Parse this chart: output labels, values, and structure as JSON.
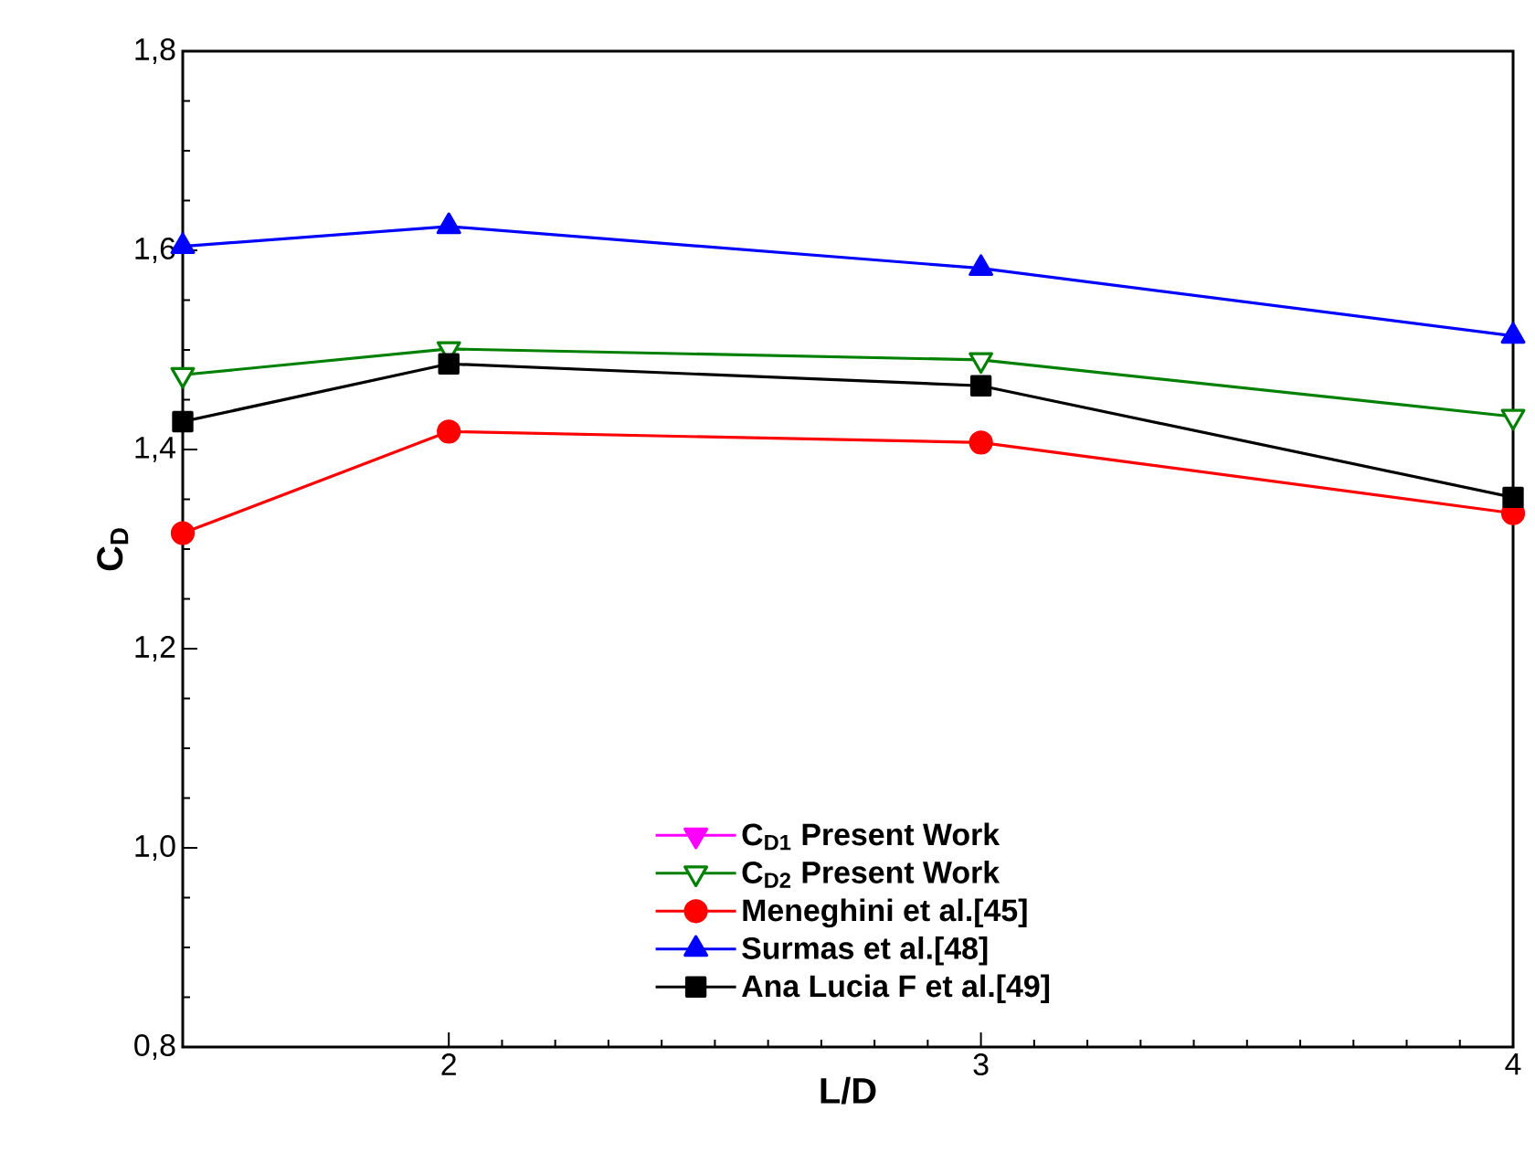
{
  "chart_data": {
    "type": "line",
    "xlabel": "L/D",
    "ylabel": "C$_{D}$",
    "x": [
      1.5,
      2,
      3,
      4
    ],
    "series": [
      {
        "name": "C$_{D1}$ Present Work",
        "color": "#ff00ff",
        "marker": "triangle-down",
        "values": [
          null,
          null,
          null,
          null
        ]
      },
      {
        "name": "C$_{D2}$ Present Work",
        "color": "#008000",
        "marker": "triangle-down-open",
        "values": [
          1.475,
          1.501,
          1.49,
          1.433
        ]
      },
      {
        "name": "Meneghini et al.[45]",
        "color": "#ff0000",
        "marker": "circle",
        "values": [
          1.316,
          1.418,
          1.407,
          1.336
        ]
      },
      {
        "name": "Surmas et al.[48]",
        "color": "#0000ff",
        "marker": "triangle",
        "values": [
          1.604,
          1.624,
          1.582,
          1.514
        ]
      },
      {
        "name": "Ana Lucia F et al.[49]",
        "color": "#000000",
        "marker": "square",
        "values": [
          1.428,
          1.486,
          1.464,
          1.352
        ]
      }
    ],
    "xlim": [
      1.5,
      4
    ],
    "ylim": [
      0.8,
      1.8
    ],
    "xticks": [
      2,
      3,
      4
    ],
    "yticks": [
      {
        "value": 0.8,
        "label": "0,8"
      },
      {
        "value": 1.0,
        "label": "1,0"
      },
      {
        "value": 1.2,
        "label": "1,2"
      },
      {
        "value": 1.4,
        "label": "1,4"
      },
      {
        "value": 1.6,
        "label": "1,6"
      },
      {
        "value": 1.8,
        "label": "1,8"
      }
    ],
    "legend": "bottom",
    "grid": false,
    "line_style": "solid"
  }
}
